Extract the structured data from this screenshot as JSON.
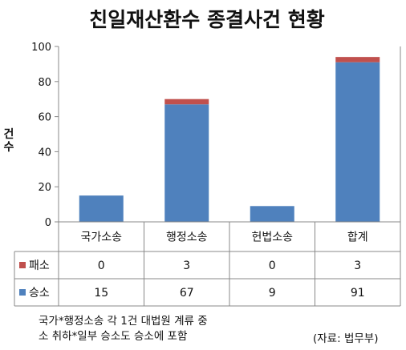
{
  "chart_data": {
    "type": "bar",
    "stacked": true,
    "title": "친일재산환수 종결사건 현황",
    "ylabel": "건 수",
    "xlabel": "",
    "categories": [
      "국가소송",
      "행정소송",
      "헌법소송",
      "합계"
    ],
    "ylim": [
      0,
      100
    ],
    "yticks": [
      0,
      20,
      40,
      60,
      80,
      100
    ],
    "series": [
      {
        "name": "승소",
        "values": [
          15,
          67,
          9,
          91
        ],
        "color": "#4f81bd"
      },
      {
        "name": "패소",
        "values": [
          0,
          3,
          0,
          3
        ],
        "color": "#c0504d"
      }
    ],
    "table": true,
    "grid": false
  },
  "note_line1": "국가*행정소송 각 1건 대법원 계류 중",
  "note_line2": "소 취하*일부 승소도 승소에 포함",
  "source": "(자료: 법무부)"
}
